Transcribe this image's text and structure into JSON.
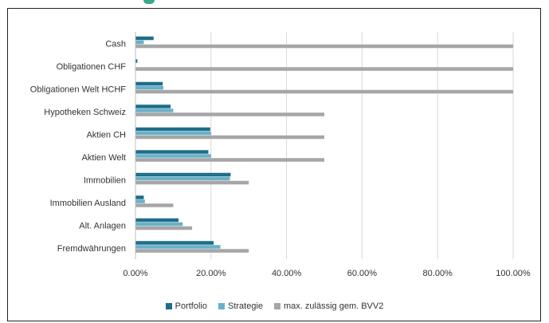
{
  "chart_data": {
    "type": "bar",
    "orientation": "horizontal",
    "categories": [
      "Cash",
      "Obligationen CHF",
      "Obligationen Welt HCHF",
      "Hypotheken Schweiz",
      "Aktien CH",
      "Aktien Welt",
      "Immobilien",
      "Immobilien Ausland",
      "Alt. Anlagen",
      "Fremdwährungen"
    ],
    "series": [
      {
        "name": "Portfolio",
        "color": "#1e6e8a",
        "values": [
          4.8,
          0.5,
          7.2,
          9.3,
          19.8,
          19.3,
          25.2,
          2.2,
          11.4,
          20.7
        ]
      },
      {
        "name": "Strategie",
        "color": "#6ab0c8",
        "values": [
          2.2,
          0.0,
          7.4,
          10.0,
          20.0,
          20.0,
          25.0,
          2.5,
          12.5,
          22.5
        ]
      },
      {
        "name": "max. zulässig gem. BVV2",
        "color": "#a6a6a6",
        "values": [
          100,
          100,
          100,
          50,
          50,
          50,
          30,
          10,
          15,
          30
        ]
      }
    ],
    "xlim": [
      0,
      100
    ],
    "xticks": [
      "0.00%",
      "20.00%",
      "40.00%",
      "60.00%",
      "80.00%",
      "100.00%"
    ],
    "grid": true,
    "legend_position": "bottom"
  }
}
